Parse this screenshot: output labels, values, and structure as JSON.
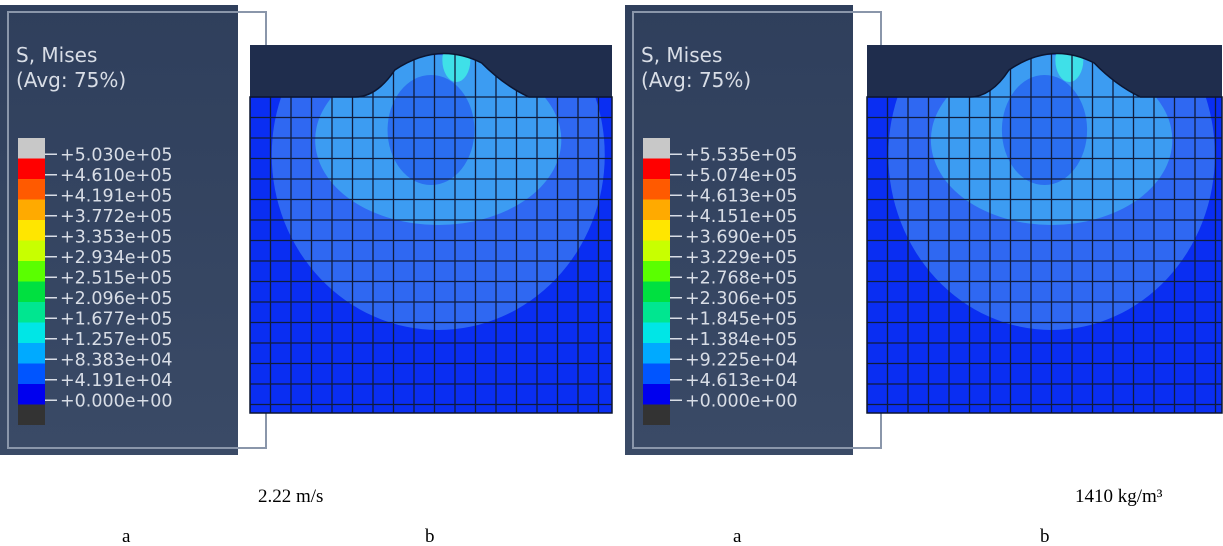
{
  "panels": [
    {
      "legend_title": "S, Mises",
      "legend_subtitle": "(Avg: 75%)",
      "levels": [
        "+5.030e+05",
        "+4.610e+05",
        "+4.191e+05",
        "+3.772e+05",
        "+3.353e+05",
        "+2.934e+05",
        "+2.515e+05",
        "+2.096e+05",
        "+1.677e+05",
        "+1.257e+05",
        "+8.383e+04",
        "+4.191e+04",
        "+0.000e+00"
      ],
      "caption": "2.22 m/s",
      "sub_labels": [
        "a",
        "b"
      ]
    },
    {
      "legend_title": "S, Mises",
      "legend_subtitle": "(Avg: 75%)",
      "levels": [
        "+5.535e+05",
        "+5.074e+05",
        "+4.613e+05",
        "+4.151e+05",
        "+3.690e+05",
        "+3.229e+05",
        "+2.768e+05",
        "+2.306e+05",
        "+1.845e+05",
        "+1.384e+05",
        "+9.225e+04",
        "+4.613e+04",
        "+0.000e+00"
      ],
      "caption": "1410 kg/m³",
      "sub_labels": [
        "a",
        "b"
      ]
    }
  ]
}
